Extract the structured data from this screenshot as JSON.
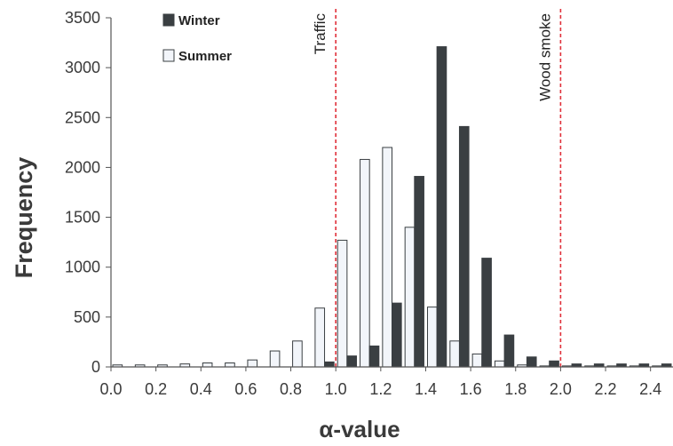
{
  "chart_data": {
    "type": "bar",
    "xlabel": "α-value",
    "ylabel": "Frequency",
    "ylim": [
      0,
      3500
    ],
    "xlim": [
      0.0,
      2.5
    ],
    "y_ticks": [
      "0",
      "500",
      "1000",
      "1500",
      "2000",
      "2500",
      "3000",
      "3500"
    ],
    "x_ticks": [
      "0.0",
      "0.2",
      "0.4",
      "0.6",
      "0.8",
      "1.0",
      "1.2",
      "1.4",
      "1.6",
      "1.8",
      "2.0",
      "2.2",
      "2.4"
    ],
    "grid": false,
    "legend_position": "top-left",
    "bin_starts": [
      0.0,
      0.1,
      0.2,
      0.3,
      0.4,
      0.5,
      0.6,
      0.7,
      0.8,
      0.9,
      1.0,
      1.1,
      1.2,
      1.3,
      1.4,
      1.5,
      1.6,
      1.7,
      1.8,
      1.9,
      2.0,
      2.1,
      2.2,
      2.3,
      2.4
    ],
    "series": [
      {
        "name": "Winter",
        "color": "#3a3f42",
        "values": [
          0,
          0,
          0,
          0,
          0,
          0,
          0,
          0,
          0,
          50,
          110,
          210,
          640,
          1910,
          3210,
          2410,
          1090,
          320,
          100,
          60,
          30,
          30,
          30,
          30,
          30
        ]
      },
      {
        "name": "Summer",
        "color": "#f2f5fa",
        "values": [
          20,
          20,
          20,
          30,
          40,
          40,
          70,
          160,
          260,
          590,
          1270,
          2080,
          2200,
          1400,
          600,
          260,
          130,
          60,
          20,
          10,
          10,
          10,
          10,
          10,
          10
        ]
      }
    ],
    "annotations": [
      {
        "label": "Traffic",
        "x": 1.0,
        "color": "#e0303a"
      },
      {
        "label": "Wood smoke",
        "x": 2.0,
        "color": "#e0303a"
      }
    ]
  }
}
